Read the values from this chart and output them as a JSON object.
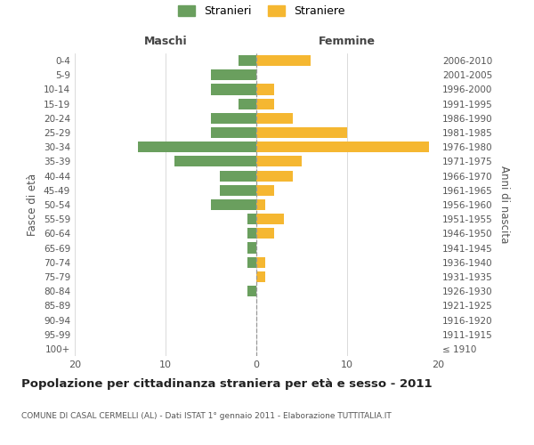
{
  "age_groups": [
    "100+",
    "95-99",
    "90-94",
    "85-89",
    "80-84",
    "75-79",
    "70-74",
    "65-69",
    "60-64",
    "55-59",
    "50-54",
    "45-49",
    "40-44",
    "35-39",
    "30-34",
    "25-29",
    "20-24",
    "15-19",
    "10-14",
    "5-9",
    "0-4"
  ],
  "birth_years": [
    "≤ 1910",
    "1911-1915",
    "1916-1920",
    "1921-1925",
    "1926-1930",
    "1931-1935",
    "1936-1940",
    "1941-1945",
    "1946-1950",
    "1951-1955",
    "1956-1960",
    "1961-1965",
    "1966-1970",
    "1971-1975",
    "1976-1980",
    "1981-1985",
    "1986-1990",
    "1991-1995",
    "1996-2000",
    "2001-2005",
    "2006-2010"
  ],
  "maschi": [
    0,
    0,
    0,
    0,
    1,
    0,
    1,
    1,
    1,
    1,
    5,
    4,
    4,
    9,
    13,
    5,
    5,
    2,
    5,
    5,
    2
  ],
  "femmine": [
    0,
    0,
    0,
    0,
    0,
    1,
    1,
    0,
    2,
    3,
    1,
    2,
    4,
    5,
    19,
    10,
    4,
    2,
    2,
    0,
    6
  ],
  "color_maschi": "#6a9f5e",
  "color_femmine": "#f5b731",
  "title": "Popolazione per cittadinanza straniera per età e sesso - 2011",
  "subtitle": "COMUNE DI CASAL CERMELLI (AL) - Dati ISTAT 1° gennaio 2011 - Elaborazione TUTTITALIA.IT",
  "xlabel_left": "Maschi",
  "xlabel_right": "Femmine",
  "ylabel_left": "Fasce di età",
  "ylabel_right": "Anni di nascita",
  "legend_maschi": "Stranieri",
  "legend_femmine": "Straniere",
  "xlim": 20,
  "background_color": "#ffffff"
}
